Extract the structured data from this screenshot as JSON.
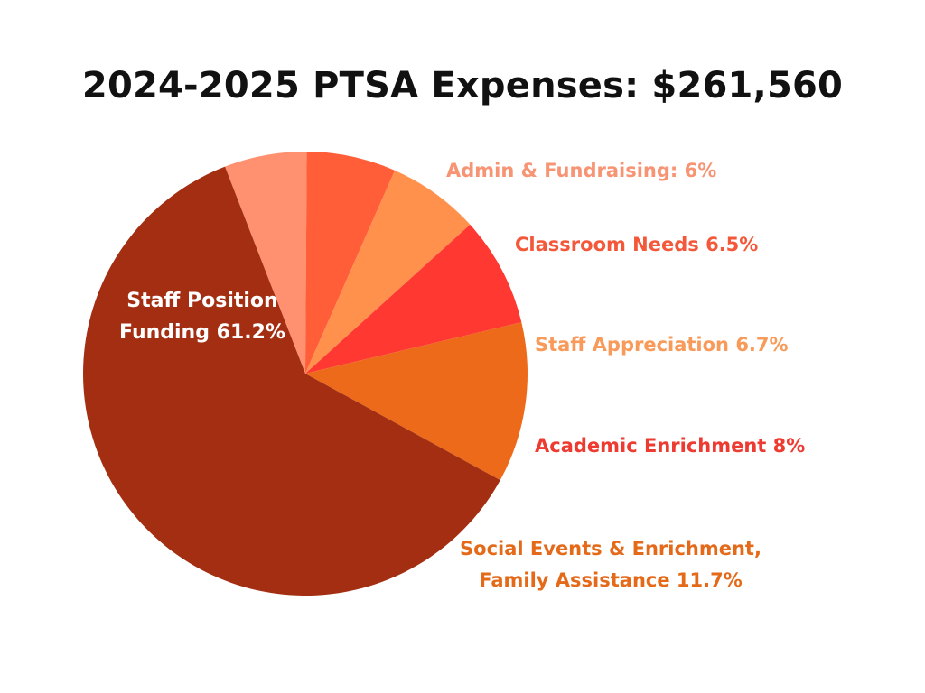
{
  "chart_data": {
    "type": "pie",
    "title": "2024-2025 PTSA Expenses: $261,560",
    "start_angle_deg": -21.2,
    "slices": [
      {
        "label": "Admin & Fundraising: 6%",
        "value": 6,
        "color": "#FF9170",
        "label_color": "#F79474"
      },
      {
        "label": "Classroom Needs 6.5%",
        "value": 6.5,
        "color": "#FF5E38",
        "label_color": "#F4583A"
      },
      {
        "label": "Staff Appreciation 6.7%",
        "value": 6.7,
        "color": "#FF914D",
        "label_color": "#F79A5A"
      },
      {
        "label": "Academic Enrichment 8%",
        "value": 8,
        "color": "#FF3831",
        "label_color": "#EE3B31"
      },
      {
        "label": "Social Events & Enrichment,\nFamily Assistance 11.7%",
        "value": 11.7,
        "color": "#EC6A1A",
        "label_color": "#E46A1A"
      },
      {
        "label": "Staff Position\nFunding 61.2%",
        "value": 61.2,
        "color": "#A32E12",
        "label_color": "#FFFFFF"
      }
    ]
  }
}
